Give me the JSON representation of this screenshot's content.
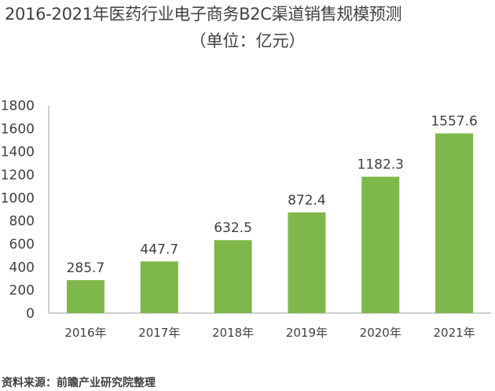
{
  "header": {
    "title": "2016-2021年医药行业电子商务B2C渠道销售规模预测",
    "subtitle": "（单位：亿元）"
  },
  "footer": {
    "source": "资料来源：前瞻产业研究院整理"
  },
  "chart_data": {
    "type": "bar",
    "categories": [
      "2016年",
      "2017年",
      "2018年",
      "2019年",
      "2020年",
      "2021年"
    ],
    "values": [
      285.7,
      447.7,
      632.5,
      872.4,
      1182.3,
      1557.6
    ],
    "value_labels": [
      "285.7",
      "447.7",
      "632.5",
      "872.4",
      "1182.3",
      "1557.6"
    ],
    "ylim": [
      0,
      1800
    ],
    "yticks": [
      0,
      200,
      400,
      600,
      800,
      1000,
      1200,
      1400,
      1600,
      1800
    ],
    "grid": false,
    "legend": "none",
    "bar_color": "#7FB84A",
    "axis_color": "#BFBFBF"
  }
}
